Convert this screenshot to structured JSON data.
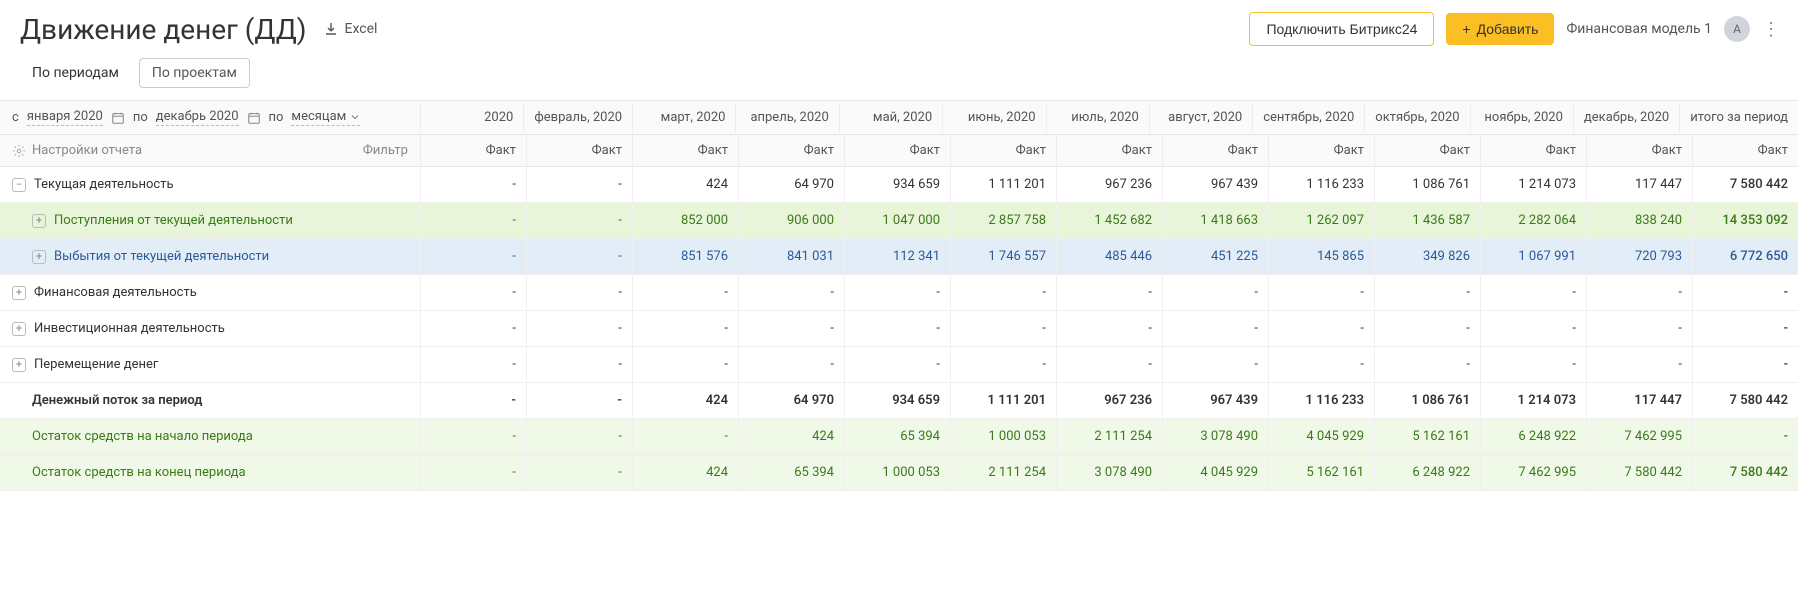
{
  "header": {
    "title": "Движение денег (ДД)",
    "excel_label": "Excel",
    "connect_label": "Подключить Битрикс24",
    "add_label": "Добавить",
    "model_label": "Финансовая модель 1",
    "avatar_letter": "A"
  },
  "tabs": {
    "t0": "По периодам",
    "t1": "По проектам"
  },
  "controls": {
    "from_prefix": "с",
    "from_value": "января 2020",
    "to_prefix": "по",
    "to_value": "декабрь 2020",
    "gran_prefix": "по",
    "gran_value": "месяцам",
    "settings_label": "Настройки отчета",
    "filter_label": "Фильтр"
  },
  "months": [
    "2020",
    "февраль, 2020",
    "март, 2020",
    "апрель, 2020",
    "май, 2020",
    "июнь, 2020",
    "июль, 2020",
    "август, 2020",
    "сентябрь, 2020",
    "октябрь, 2020",
    "ноябрь, 2020",
    "декабрь, 2020",
    "итого за период"
  ],
  "fact_label": "Факт",
  "rows": [
    {
      "label": "Текущая деятельность",
      "icon": "minus",
      "indent": 0,
      "style": "",
      "cells": [
        "-",
        "-",
        "424",
        "64 970",
        "934 659",
        "1 111 201",
        "967 236",
        "967 439",
        "1 116 233",
        "1 086 761",
        "1 214 073",
        "117 447",
        "7 580 442"
      ]
    },
    {
      "label": "Поступления от текущей деятельности",
      "icon": "plus",
      "indent": 1,
      "style": "green",
      "cells": [
        "-",
        "-",
        "852 000",
        "906 000",
        "1 047 000",
        "2 857 758",
        "1 452 682",
        "1 418 663",
        "1 262 097",
        "1 436 587",
        "2 282 064",
        "838 240",
        "14 353 092"
      ]
    },
    {
      "label": "Выбытия от текущей деятельности",
      "icon": "plus",
      "indent": 1,
      "style": "blue",
      "cells": [
        "-",
        "-",
        "851 576",
        "841 031",
        "112 341",
        "1 746 557",
        "485 446",
        "451 225",
        "145 865",
        "349 826",
        "1 067 991",
        "720 793",
        "6 772 650"
      ]
    },
    {
      "label": "Финансовая деятельность",
      "icon": "plus",
      "indent": 0,
      "style": "",
      "cells": [
        "-",
        "-",
        "-",
        "-",
        "-",
        "-",
        "-",
        "-",
        "-",
        "-",
        "-",
        "-",
        "-"
      ]
    },
    {
      "label": "Инвестиционная деятельность",
      "icon": "plus",
      "indent": 0,
      "style": "",
      "cells": [
        "-",
        "-",
        "-",
        "-",
        "-",
        "-",
        "-",
        "-",
        "-",
        "-",
        "-",
        "-",
        "-"
      ]
    },
    {
      "label": "Перемещение денег",
      "icon": "plus",
      "indent": 0,
      "style": "",
      "cells": [
        "-",
        "-",
        "-",
        "-",
        "-",
        "-",
        "-",
        "-",
        "-",
        "-",
        "-",
        "-",
        "-"
      ]
    },
    {
      "label": "Денежный поток за период",
      "icon": "none",
      "indent": 2,
      "style": "bold",
      "cells": [
        "-",
        "-",
        "424",
        "64 970",
        "934 659",
        "1 111 201",
        "967 236",
        "967 439",
        "1 116 233",
        "1 086 761",
        "1 214 073",
        "117 447",
        "7 580 442"
      ]
    },
    {
      "label": "Остаток средств на начало периода",
      "icon": "none",
      "indent": 2,
      "style": "lightgreen",
      "cells": [
        "-",
        "-",
        "-",
        "424",
        "65 394",
        "1 000 053",
        "2 111 254",
        "3 078 490",
        "4 045 929",
        "5 162 161",
        "6 248 922",
        "7 462 995",
        "-"
      ]
    },
    {
      "label": "Остаток средств на конец периода",
      "icon": "none",
      "indent": 2,
      "style": "lightgreen",
      "cells": [
        "-",
        "-",
        "424",
        "65 394",
        "1 000 053",
        "2 111 254",
        "3 078 490",
        "4 045 929",
        "5 162 161",
        "6 248 922",
        "7 462 995",
        "7 580 442",
        "7 580 442"
      ]
    }
  ]
}
